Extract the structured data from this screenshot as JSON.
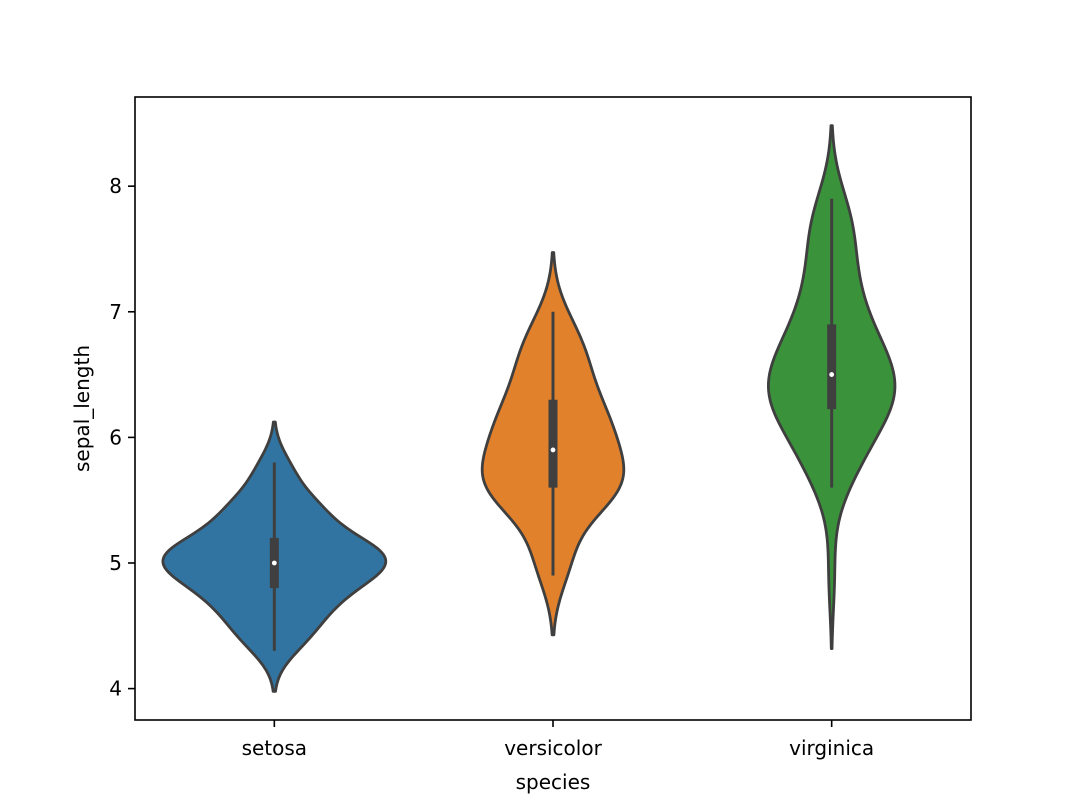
{
  "chart_data": {
    "type": "violin",
    "title": "",
    "xlabel": "species",
    "ylabel": "sepal_length",
    "categories": [
      "setosa",
      "versicolor",
      "virginica"
    ],
    "ylim": [
      3.75,
      8.71
    ],
    "yticks": [
      "4",
      "5",
      "6",
      "7",
      "8"
    ],
    "grid": false,
    "inner": "box",
    "colors": {
      "setosa": "#3274a1",
      "versicolor": "#e1812c",
      "virginica": "#3a923a",
      "edge": "#3f3f3f"
    },
    "observations": {
      "setosa": [
        5.1,
        4.9,
        4.7,
        4.6,
        5.0,
        5.4,
        4.6,
        5.0,
        4.4,
        4.9,
        5.4,
        4.8,
        4.8,
        4.3,
        5.8,
        5.7,
        5.4,
        5.1,
        5.7,
        5.1,
        5.4,
        5.1,
        4.6,
        5.1,
        4.8,
        5.0,
        5.0,
        5.2,
        5.2,
        4.7,
        4.8,
        5.4,
        5.2,
        5.5,
        4.9,
        5.0,
        5.5,
        4.9,
        4.4,
        5.1,
        5.0,
        4.5,
        4.4,
        5.0,
        5.1,
        4.8,
        5.1,
        4.6,
        5.3,
        5.0
      ],
      "versicolor": [
        7.0,
        6.4,
        6.9,
        5.5,
        6.5,
        5.7,
        6.3,
        4.9,
        6.6,
        5.2,
        5.0,
        5.9,
        6.0,
        6.1,
        5.6,
        6.7,
        5.6,
        5.8,
        6.2,
        5.6,
        5.9,
        6.1,
        6.3,
        6.1,
        6.4,
        6.6,
        6.8,
        6.7,
        6.0,
        5.7,
        5.5,
        5.5,
        5.8,
        6.0,
        5.4,
        6.0,
        6.7,
        6.3,
        5.6,
        5.5,
        5.5,
        6.1,
        5.8,
        5.0,
        5.6,
        5.7,
        5.7,
        6.2,
        5.1,
        5.7
      ],
      "virginica": [
        6.3,
        5.8,
        7.1,
        6.3,
        6.5,
        7.6,
        4.9,
        7.3,
        6.7,
        7.2,
        6.5,
        6.4,
        6.8,
        5.7,
        5.8,
        6.4,
        6.5,
        7.7,
        7.7,
        6.0,
        6.9,
        5.6,
        7.7,
        6.3,
        6.7,
        7.2,
        6.2,
        6.1,
        6.4,
        7.2,
        7.4,
        7.9,
        6.4,
        6.3,
        6.1,
        7.7,
        6.3,
        6.4,
        6.0,
        6.9,
        6.7,
        6.9,
        5.8,
        6.8,
        6.7,
        6.7,
        6.3,
        6.5,
        6.2,
        5.9
      ]
    }
  }
}
